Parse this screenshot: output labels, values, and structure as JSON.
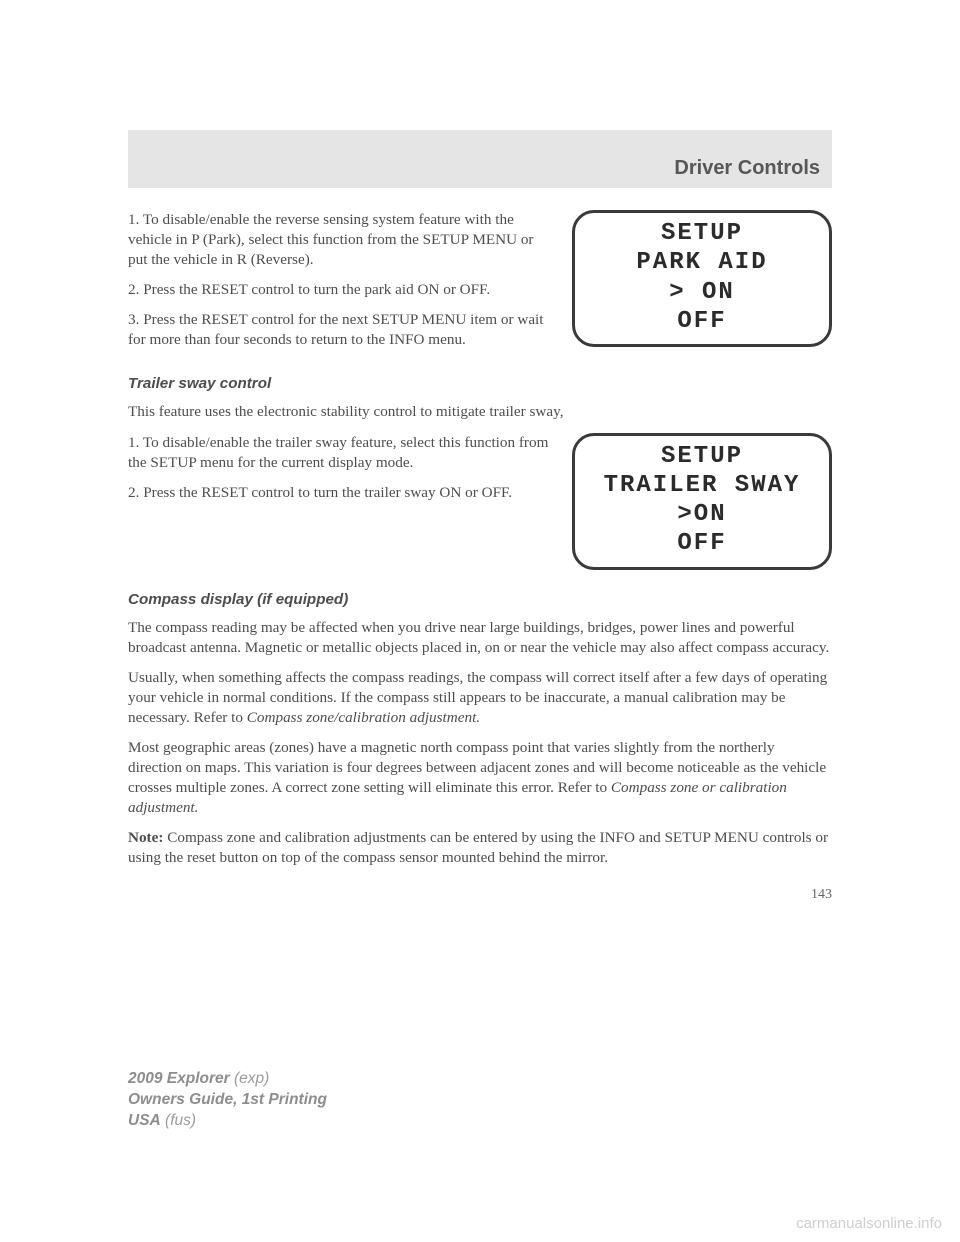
{
  "header": {
    "title": "Driver Controls"
  },
  "lcd1": {
    "l1": "SETUP",
    "l2": "PARK AID",
    "l3": "> ON",
    "l4": "OFF"
  },
  "lcd2": {
    "l1": "SETUP",
    "l2": "TRAILER SWAY",
    "l3": ">ON",
    "l4": "OFF"
  },
  "body": {
    "p1": "1. To disable/enable the reverse sensing system feature with the vehicle in P (Park), select this function from the SETUP MENU or put the vehicle in R (Reverse).",
    "p2": "2. Press the RESET control to turn the park aid ON or OFF.",
    "p3": "3. Press the RESET control for the next SETUP MENU item or wait for more than four seconds to return to the INFO menu.",
    "h1": "Trailer sway control",
    "p4": "This feature uses the electronic stability control to mitigate trailer sway,",
    "p5": "1. To disable/enable the trailer sway feature, select this function from the SETUP menu for the current display mode.",
    "p6": "2. Press the RESET control to turn the trailer sway ON or OFF.",
    "h2": "Compass display (if equipped)",
    "p7": "The compass reading may be affected when you drive near large buildings, bridges, power lines and powerful broadcast antenna. Magnetic or metallic objects placed in, on or near the vehicle may also affect compass accuracy.",
    "p8a": "Usually, when something affects the compass readings, the compass will correct itself after a few days of operating your vehicle in normal conditions. If the compass still appears to be inaccurate, a manual calibration may be necessary. Refer to ",
    "p8i": "Compass zone/calibration adjustment.",
    "p9a": "Most geographic areas (zones) have a magnetic north compass point that varies slightly from the northerly direction on maps. This variation is four degrees between adjacent zones and will become noticeable as the vehicle crosses multiple zones. A correct zone setting will eliminate this error. Refer to ",
    "p9i": "Compass zone or calibration adjustment.",
    "noteLabel": "Note:",
    "p10": " Compass zone and calibration adjustments can be entered by using the INFO and SETUP MENU controls or using the reset button on top of the compass sensor mounted behind the mirror."
  },
  "pageNumber": "143",
  "footer": {
    "l1a": "2009 Explorer",
    "l1b": " (exp)",
    "l2": "Owners Guide, 1st Printing",
    "l3a": "USA",
    "l3b": " (fus)"
  },
  "watermark": "carmanualsonline.info"
}
